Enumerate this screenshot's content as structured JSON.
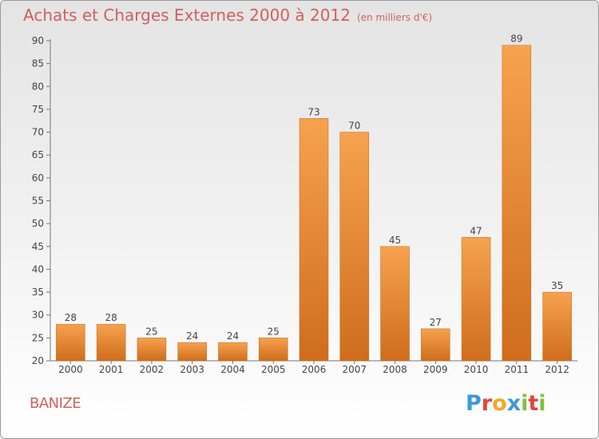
{
  "title": "Achats et Charges Externes 2000 à 2012",
  "subtitle": "(en milliers d'€)",
  "commune": "BANIZE",
  "logo": {
    "letters": [
      "P",
      "r",
      "o",
      "x",
      "i",
      "t",
      "i"
    ],
    "colors": [
      "#3a9ad9",
      "#e2463b",
      "#f5a623",
      "#3a9ad9",
      "#7cc242",
      "#e2463b",
      "#7cc242"
    ]
  },
  "colors": {
    "bar": "#ef8d35",
    "bar_dark": "#d06f1d",
    "title": "#d0605e",
    "axis": "#555555"
  },
  "chart_data": {
    "type": "bar",
    "title": "Achats et Charges Externes 2000 à 2012",
    "subtitle": "(en milliers d'€)",
    "xlabel": "",
    "ylabel": "",
    "categories": [
      "2000",
      "2001",
      "2002",
      "2003",
      "2004",
      "2005",
      "2006",
      "2007",
      "2008",
      "2009",
      "2010",
      "2011",
      "2012"
    ],
    "values": [
      28,
      28,
      25,
      24,
      24,
      25,
      73,
      70,
      45,
      27,
      47,
      89,
      35
    ],
    "ylim": [
      20,
      90
    ],
    "yticks": [
      20,
      25,
      30,
      35,
      40,
      45,
      50,
      55,
      60,
      65,
      70,
      75,
      80,
      85,
      90
    ],
    "grid": false,
    "data_labels": true
  }
}
